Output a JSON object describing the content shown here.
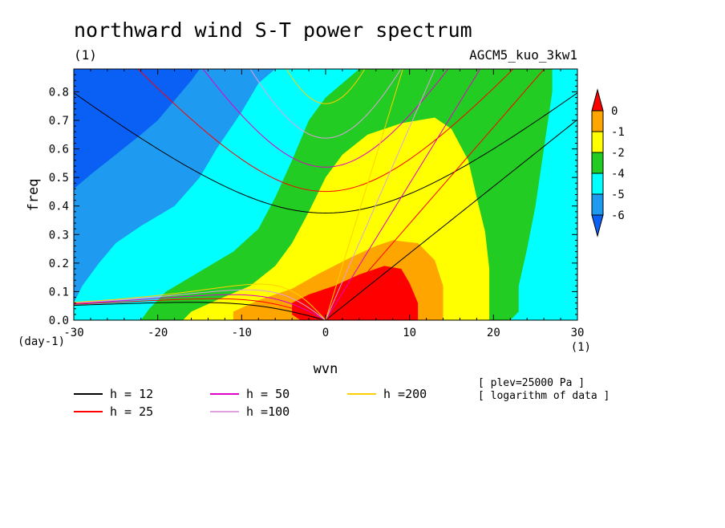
{
  "header": {
    "title": "northward wind S-T power spectrum",
    "subtitle_left": "(1)",
    "subtitle_right": "AGCM5_kuo_3kw1"
  },
  "notes": {
    "line1": "[ plev=25000 Pa ]",
    "line2": "[ logarithm of data ]"
  },
  "chart_data": {
    "type": "heatmap",
    "xlabel": "wvn",
    "ylabel": "freq",
    "x_unit": "(1)",
    "y_unit": "(day-1)",
    "xlim": [
      -30,
      30
    ],
    "ylim": [
      0,
      0.88
    ],
    "x_ticks": [
      -30,
      -20,
      -10,
      0,
      10,
      20,
      30
    ],
    "x_tick_labels": [
      "-30",
      "-20",
      "-10",
      "0",
      "10",
      "20",
      "30"
    ],
    "y_ticks": [
      0,
      0.1,
      0.2,
      0.3,
      0.4,
      0.5,
      0.6,
      0.7,
      0.8
    ],
    "y_tick_labels": [
      "0.0",
      "0.1",
      "0.2",
      "0.3",
      "0.4",
      "0.5",
      "0.6",
      "0.7",
      "0.8"
    ],
    "colorbar": {
      "levels": [
        0,
        -1,
        -2,
        -4,
        -5,
        -6
      ],
      "level_labels": [
        "0",
        "-1",
        "-2",
        "-4",
        "-5",
        "-6"
      ],
      "colors": [
        "#ff0000",
        "#ffa500",
        "#ffff00",
        "#22cc22",
        "#00ffff",
        "#1e9bf0",
        "#0a60f5"
      ]
    },
    "contours": [
      {
        "level": "> 0",
        "color": "#ff0000",
        "points": [
          [
            -3,
            0
          ],
          [
            -4,
            0.02
          ],
          [
            -4,
            0.06
          ],
          [
            -2,
            0.09
          ],
          [
            1,
            0.12
          ],
          [
            4,
            0.16
          ],
          [
            7,
            0.19
          ],
          [
            9,
            0.18
          ],
          [
            10,
            0.13
          ],
          [
            11,
            0.06
          ],
          [
            11,
            0
          ]
        ]
      },
      {
        "level": "-1 to 0",
        "color": "#ffa500",
        "points": [
          [
            -11,
            0
          ],
          [
            -11,
            0.03
          ],
          [
            -8,
            0.07
          ],
          [
            -4,
            0.11
          ],
          [
            -1,
            0.16
          ],
          [
            3,
            0.22
          ],
          [
            6,
            0.26
          ],
          [
            8,
            0.28
          ],
          [
            11,
            0.27
          ],
          [
            13,
            0.21
          ],
          [
            14,
            0.12
          ],
          [
            14,
            0.04
          ],
          [
            14,
            0
          ]
        ]
      },
      {
        "level": "-2 to -1",
        "color": "#ffff00",
        "points": [
          [
            -17,
            0
          ],
          [
            -16,
            0.03
          ],
          [
            -13,
            0.07
          ],
          [
            -9,
            0.12
          ],
          [
            -6,
            0.19
          ],
          [
            -4,
            0.27
          ],
          [
            -2,
            0.38
          ],
          [
            0,
            0.5
          ],
          [
            2,
            0.58
          ],
          [
            5,
            0.65
          ],
          [
            9,
            0.69
          ],
          [
            13,
            0.71
          ],
          [
            15,
            0.67
          ],
          [
            17,
            0.56
          ],
          [
            18,
            0.43
          ],
          [
            19,
            0.31
          ],
          [
            19.5,
            0.18
          ],
          [
            19.5,
            0.06
          ],
          [
            19.5,
            0
          ]
        ]
      },
      {
        "level": "-4 to -2",
        "color": "#22cc22",
        "points": [
          [
            -22,
            0
          ],
          [
            -21,
            0.04
          ],
          [
            -19,
            0.1
          ],
          [
            -15,
            0.17
          ],
          [
            -11,
            0.24
          ],
          [
            -8,
            0.32
          ],
          [
            -6,
            0.43
          ],
          [
            -4,
            0.56
          ],
          [
            -2,
            0.7
          ],
          [
            0,
            0.78
          ],
          [
            2,
            0.83
          ],
          [
            4,
            0.88
          ],
          [
            27,
            0.88
          ],
          [
            27,
            0.8
          ],
          [
            26,
            0.6
          ],
          [
            25,
            0.4
          ],
          [
            24,
            0.25
          ],
          [
            23,
            0.12
          ],
          [
            23,
            0.03
          ],
          [
            22,
            0
          ]
        ]
      },
      {
        "level": "-5 to -4",
        "color": "#00ffff",
        "points": [
          [
            -30,
            0.06
          ],
          [
            -29,
            0.12
          ],
          [
            -27,
            0.2
          ],
          [
            -25,
            0.27
          ],
          [
            -22,
            0.33
          ],
          [
            -18,
            0.4
          ],
          [
            -15,
            0.5
          ],
          [
            -13,
            0.6
          ],
          [
            -10,
            0.73
          ],
          [
            -8,
            0.83
          ],
          [
            -6,
            0.88
          ]
        ]
      },
      {
        "level": "-6 to -5",
        "color": "#1e9bf0",
        "points": [
          [
            -30,
            0.46
          ],
          [
            -28,
            0.51
          ],
          [
            -25,
            0.58
          ],
          [
            -22,
            0.65
          ],
          [
            -20,
            0.7
          ],
          [
            -18,
            0.77
          ],
          [
            -16,
            0.84
          ],
          [
            -15,
            0.88
          ]
        ]
      }
    ],
    "dispersion_curves": [
      {
        "name": "h = 12",
        "color": "#000000"
      },
      {
        "name": "h = 25",
        "color": "#ff0000"
      },
      {
        "name": "h = 50",
        "color": "#e000c8"
      },
      {
        "name": "h =100",
        "color": "#e0a0e0"
      },
      {
        "name": "h =200",
        "color": "#ffd000"
      }
    ],
    "curve_params": {
      "equivalent_depths": [
        12,
        25,
        50,
        100,
        200
      ],
      "families": [
        "kelvin",
        "n1_inertio_gravity",
        "n1_equatorial_rossby"
      ]
    }
  }
}
